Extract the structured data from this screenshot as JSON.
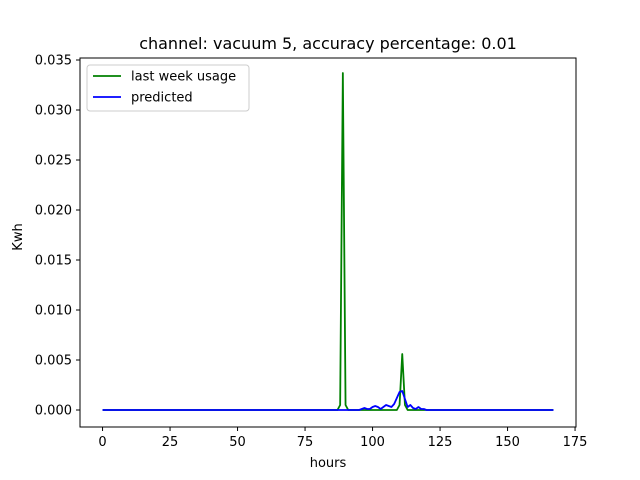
{
  "chart_data": {
    "type": "line",
    "title": "channel: vacuum 5, accuracy percentage: 0.01",
    "xlabel": "hours",
    "ylabel": "Kwh",
    "xlim": [
      -8.35,
      175.35
    ],
    "ylim": [
      -0.0017,
      0.0352
    ],
    "xticks": [
      0,
      25,
      50,
      75,
      100,
      125,
      150,
      175
    ],
    "xtick_labels": [
      "0",
      "25",
      "50",
      "75",
      "100",
      "125",
      "150",
      "175"
    ],
    "yticks": [
      0.0,
      0.005,
      0.01,
      0.015,
      0.02,
      0.025,
      0.03,
      0.035
    ],
    "ytick_labels": [
      "0.000",
      "0.005",
      "0.010",
      "0.015",
      "0.020",
      "0.025",
      "0.030",
      "0.035"
    ],
    "grid": false,
    "legend_position": "top-left",
    "series": [
      {
        "name": "last week usage",
        "color": "#008000",
        "x": [
          0,
          87,
          88,
          89,
          90,
          91,
          109,
          110,
          111,
          112,
          113,
          167
        ],
        "y": [
          0,
          0,
          0.0005,
          0.0337,
          0.0005,
          0,
          0,
          0.0005,
          0.0056,
          0.0005,
          0,
          0
        ]
      },
      {
        "name": "predicted",
        "color": "#0000ff",
        "x": [
          0,
          95,
          96,
          97,
          98,
          99,
          100,
          101,
          102,
          103,
          104,
          105,
          106,
          107,
          108,
          109,
          110,
          111,
          112,
          113,
          114,
          115,
          116,
          117,
          118,
          119,
          120,
          167
        ],
        "y": [
          0,
          0,
          0.0001,
          0.0002,
          0.0001,
          0.0001,
          0.0003,
          0.0004,
          0.0003,
          0.0001,
          0.0003,
          0.0005,
          0.0004,
          0.0003,
          0.0006,
          0.0012,
          0.0018,
          0.0019,
          0.0011,
          0.0003,
          0.0005,
          0.0002,
          0.0001,
          0.0003,
          0.0001,
          0.0001,
          0,
          0
        ]
      }
    ]
  }
}
